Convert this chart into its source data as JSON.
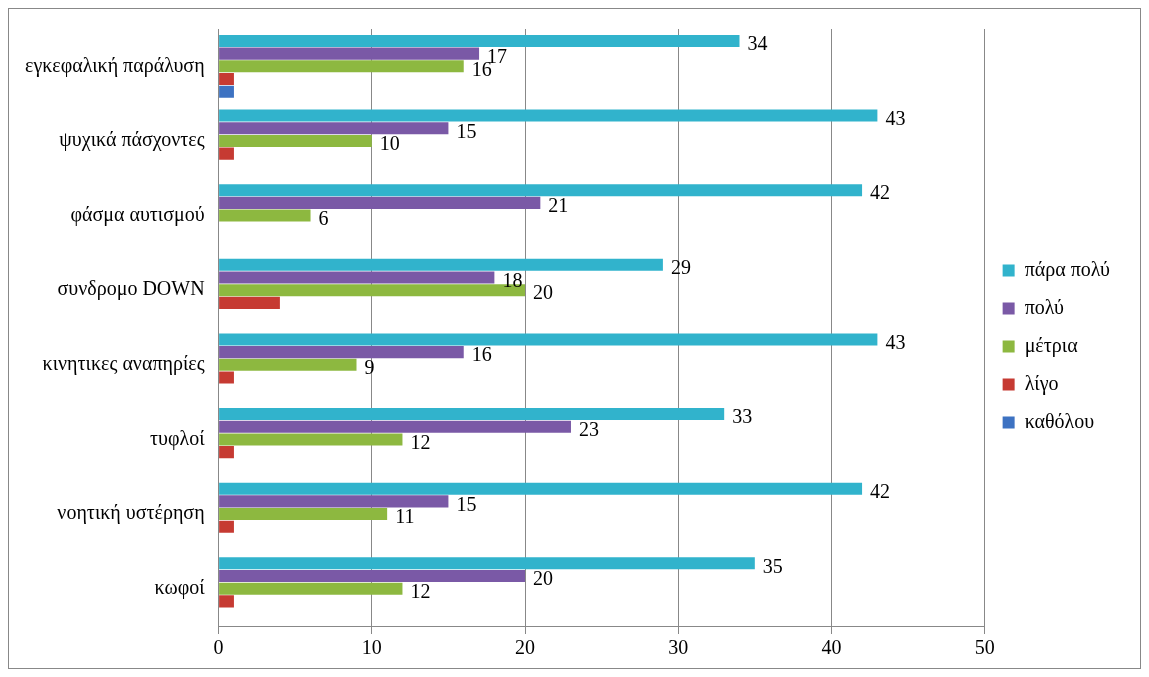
{
  "chart_data": {
    "type": "bar",
    "orientation": "horizontal",
    "categories": [
      "εγκεφαλική παράλυση",
      "ψυχικά πάσχοντες",
      "φάσμα αυτισμού",
      "συνδρομο DOWN",
      "κινητικες αναπηρίες",
      "τυφλοί",
      "νοητική υστέρηση",
      "κωφοί"
    ],
    "series": [
      {
        "name": "πάρα πολύ",
        "color": "#31b3cc",
        "values": [
          34,
          43,
          42,
          29,
          43,
          33,
          42,
          35
        ],
        "value_labels": [
          "34",
          "43",
          "42",
          "29",
          "43",
          "33",
          "42",
          "35"
        ]
      },
      {
        "name": "πολύ",
        "color": "#7a59a6",
        "values": [
          17,
          15,
          21,
          18,
          16,
          23,
          15,
          20
        ],
        "value_labels": [
          "17",
          "15",
          "21",
          "18",
          "16",
          "23",
          "15",
          "20"
        ]
      },
      {
        "name": "μέτρια",
        "color": "#8db840",
        "values": [
          16,
          10,
          6,
          20,
          9,
          12,
          11,
          12
        ],
        "value_labels": [
          "16",
          "10",
          "6",
          "20",
          "9",
          "12",
          "11",
          "12"
        ]
      },
      {
        "name": "λίγο",
        "color": "#c63a32",
        "values": [
          1,
          1,
          0,
          4,
          1,
          1,
          1,
          1
        ]
      },
      {
        "name": "καθόλου",
        "color": "#3d72c2",
        "values": [
          1,
          0,
          0,
          0,
          0,
          0,
          0,
          0
        ]
      }
    ],
    "xlim": [
      0,
      50
    ],
    "xticks": [
      0,
      10,
      20,
      30,
      40,
      50
    ],
    "grid": "x",
    "legend": "right"
  }
}
